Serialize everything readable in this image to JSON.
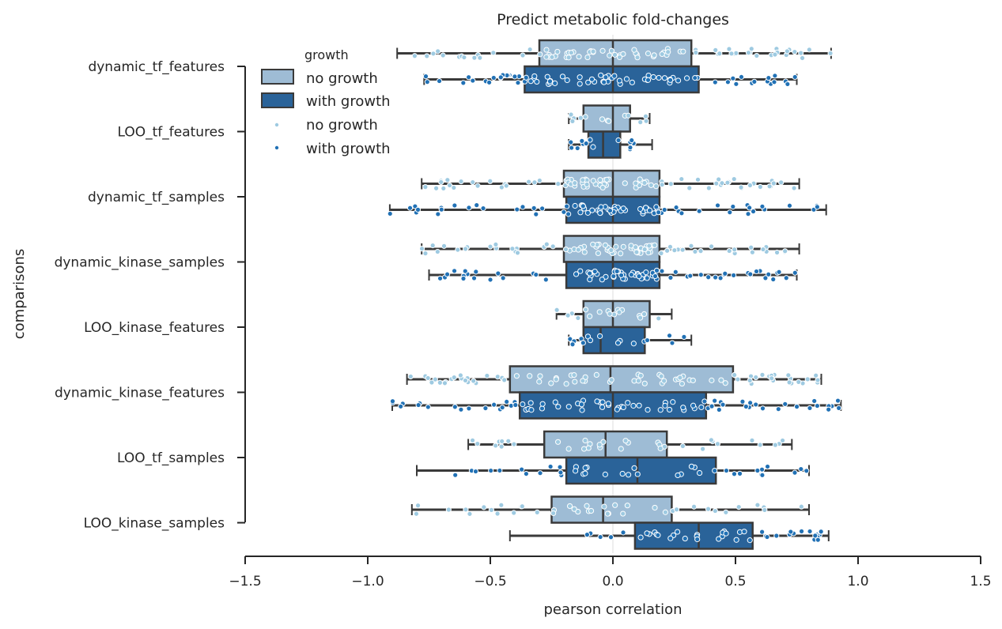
{
  "chart_data": {
    "type": "box",
    "title": "Predict metabolic fold-changes",
    "xlabel": "pearson correlation",
    "ylabel": "comparisons",
    "xlim": [
      -1.5,
      1.5
    ],
    "xticks": [
      -1.5,
      -1.0,
      -0.5,
      0.0,
      0.5,
      1.0,
      1.5
    ],
    "xtick_labels": [
      "−1.5",
      "−1.0",
      "−0.5",
      "0.0",
      "0.5",
      "1.0",
      "1.5"
    ],
    "categories": [
      "dynamic_tf_features",
      "LOO_tf_features",
      "dynamic_tf_samples",
      "dynamic_kinase_samples",
      "LOO_kinase_features",
      "dynamic_kinase_features",
      "LOO_tf_samples",
      "LOO_kinase_samples"
    ],
    "legend": {
      "title": "growth",
      "position": "upper-left",
      "box_entries": [
        "no growth",
        "with growth"
      ],
      "point_entries": [
        "no growth",
        "with growth"
      ]
    },
    "colors": {
      "no_growth_box": "#9ebcd5",
      "with_growth_box": "#2a6399",
      "no_growth_point": "#9ecae1",
      "with_growth_point": "#2171b5",
      "edge": "#3a3a3a"
    },
    "series": [
      {
        "name": "no growth",
        "boxes": [
          {
            "category": "dynamic_tf_features",
            "whislo": -0.88,
            "q1": -0.3,
            "median": 0.0,
            "q3": 0.32,
            "whishi": 0.89,
            "points": 80
          },
          {
            "category": "LOO_tf_features",
            "whislo": -0.18,
            "q1": -0.12,
            "median": 0.0,
            "q3": 0.07,
            "whishi": 0.15,
            "points": 14
          },
          {
            "category": "dynamic_tf_samples",
            "whislo": -0.78,
            "q1": -0.2,
            "median": 0.0,
            "q3": 0.19,
            "whishi": 0.76,
            "points": 80
          },
          {
            "category": "dynamic_kinase_samples",
            "whislo": -0.78,
            "q1": -0.2,
            "median": 0.0,
            "q3": 0.19,
            "whishi": 0.76,
            "points": 80
          },
          {
            "category": "LOO_kinase_features",
            "whislo": -0.23,
            "q1": -0.12,
            "median": 0.0,
            "q3": 0.15,
            "whishi": 0.24,
            "points": 18
          },
          {
            "category": "dynamic_kinase_features",
            "whislo": -0.84,
            "q1": -0.42,
            "median": -0.01,
            "q3": 0.49,
            "whishi": 0.85,
            "points": 80
          },
          {
            "category": "LOO_tf_samples",
            "whislo": -0.59,
            "q1": -0.28,
            "median": -0.03,
            "q3": 0.22,
            "whishi": 0.73,
            "points": 34
          },
          {
            "category": "LOO_kinase_samples",
            "whislo": -0.82,
            "q1": -0.25,
            "median": -0.04,
            "q3": 0.24,
            "whishi": 0.8,
            "points": 40
          }
        ]
      },
      {
        "name": "with growth",
        "boxes": [
          {
            "category": "dynamic_tf_features",
            "whislo": -0.77,
            "q1": -0.36,
            "median": 0.0,
            "q3": 0.35,
            "whishi": 0.75,
            "points": 80
          },
          {
            "category": "LOO_tf_features",
            "whislo": -0.18,
            "q1": -0.1,
            "median": -0.04,
            "q3": 0.03,
            "whishi": 0.16,
            "points": 14
          },
          {
            "category": "dynamic_tf_samples",
            "whislo": -0.91,
            "q1": -0.19,
            "median": 0.0,
            "q3": 0.19,
            "whishi": 0.87,
            "points": 80
          },
          {
            "category": "dynamic_kinase_samples",
            "whislo": -0.75,
            "q1": -0.19,
            "median": 0.0,
            "q3": 0.19,
            "whishi": 0.75,
            "points": 80
          },
          {
            "category": "LOO_kinase_features",
            "whislo": -0.18,
            "q1": -0.12,
            "median": -0.05,
            "q3": 0.13,
            "whishi": 0.32,
            "points": 16
          },
          {
            "category": "dynamic_kinase_features",
            "whislo": -0.9,
            "q1": -0.38,
            "median": 0.0,
            "q3": 0.38,
            "whishi": 0.93,
            "points": 80
          },
          {
            "category": "LOO_tf_samples",
            "whislo": -0.8,
            "q1": -0.19,
            "median": 0.1,
            "q3": 0.42,
            "whishi": 0.8,
            "points": 40
          },
          {
            "category": "LOO_kinase_samples",
            "whislo": -0.42,
            "q1": 0.09,
            "median": 0.35,
            "q3": 0.57,
            "whishi": 0.88,
            "points": 44
          }
        ]
      }
    ]
  }
}
